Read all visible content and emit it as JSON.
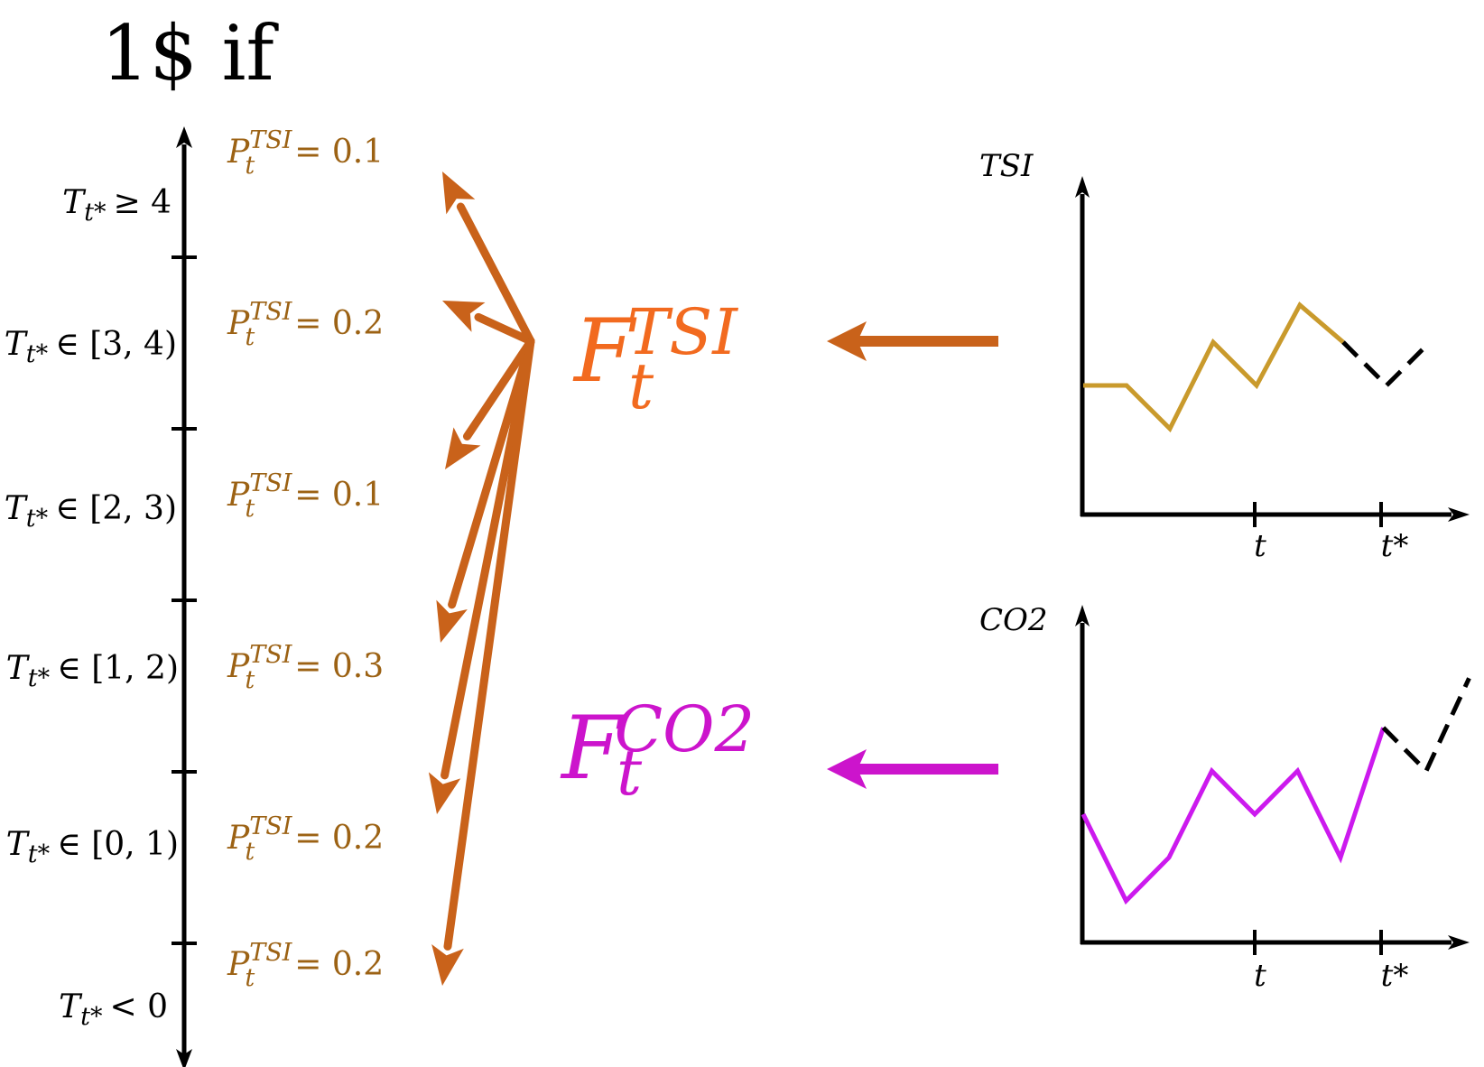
{
  "title": "1$ if",
  "intervals": [
    {
      "var": "T",
      "sub": "t*",
      "relation": "≥ 4"
    },
    {
      "var": "T",
      "sub": "t*",
      "relation": "∈ [3, 4)"
    },
    {
      "var": "T",
      "sub": "t*",
      "relation": "∈ [2, 3)"
    },
    {
      "var": "T",
      "sub": "t*",
      "relation": "∈ [1, 2)"
    },
    {
      "var": "T",
      "sub": "t*",
      "relation": "∈ [0, 1)"
    },
    {
      "var": "T",
      "sub": "t*",
      "relation": "< 0"
    }
  ],
  "probabilities": [
    {
      "sym": "P",
      "sup": "TSI",
      "sub": "t",
      "eq": "= 0.1",
      "value": 0.1
    },
    {
      "sym": "P",
      "sup": "TSI",
      "sub": "t",
      "eq": "= 0.2",
      "value": 0.2
    },
    {
      "sym": "P",
      "sup": "TSI",
      "sub": "t",
      "eq": "= 0.1",
      "value": 0.1
    },
    {
      "sym": "P",
      "sup": "TSI",
      "sub": "t",
      "eq": "= 0.3",
      "value": 0.3
    },
    {
      "sym": "P",
      "sup": "TSI",
      "sub": "t",
      "eq": "= 0.2",
      "value": 0.2
    },
    {
      "sym": "P",
      "sup": "TSI",
      "sub": "t",
      "eq": "= 0.2",
      "value": 0.2
    }
  ],
  "forecasts": {
    "tsi": {
      "F": "F",
      "sub": "t",
      "sup": "TSI"
    },
    "co2": {
      "F": "F",
      "sub": "t",
      "sup": "CO2"
    }
  },
  "plots": {
    "tsi": {
      "ylabel": "TSI",
      "xticks": [
        "t",
        "t*"
      ],
      "observed_values": [
        0.0,
        0.0,
        -0.35,
        0.35,
        0.0,
        0.65,
        0.35
      ],
      "forecast_values": [
        0.35,
        0.0,
        0.35
      ]
    },
    "co2": {
      "ylabel": "CO2",
      "xticks": [
        "t",
        "t*"
      ],
      "observed_values": [
        0.0,
        -0.7,
        -0.35,
        0.35,
        0.0,
        0.35,
        -0.35,
        0.7
      ],
      "forecast_values": [
        0.7,
        0.35,
        1.1
      ]
    }
  },
  "colors": {
    "prob_text": "#9c6214",
    "arrow": "#c9621a",
    "f_tsi": "#f26a1f",
    "f_co2": "#cc14cc",
    "tsi_line": "#c99a2c",
    "co2_line": "#cc1aee",
    "axis": "#000000"
  }
}
